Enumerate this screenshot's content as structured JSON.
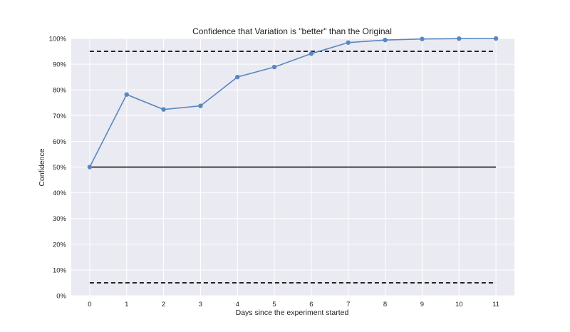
{
  "chart_data": {
    "type": "line",
    "title": "Confidence that Variation is \"better\" than the Original",
    "xlabel": "Days since the experiment started",
    "ylabel": "Confidence",
    "x": [
      0,
      1,
      2,
      3,
      4,
      5,
      6,
      7,
      8,
      9,
      10,
      11
    ],
    "x_ticks": [
      "0",
      "1",
      "2",
      "3",
      "4",
      "5",
      "6",
      "7",
      "8",
      "9",
      "10",
      "11"
    ],
    "xlim": [
      -0.5,
      11.5
    ],
    "ylim": [
      0,
      100
    ],
    "y_ticks": [
      0,
      10,
      20,
      30,
      40,
      50,
      60,
      70,
      80,
      90,
      100
    ],
    "y_tick_labels": [
      "0%",
      "10%",
      "20%",
      "30%",
      "40%",
      "50%",
      "60%",
      "70%",
      "80%",
      "90%",
      "100%"
    ],
    "series": [
      {
        "values": [
          50,
          78.2,
          72.4,
          73.8,
          85,
          88.9,
          94.1,
          98.4,
          99.4,
          99.8,
          99.95,
          100
        ],
        "color": "#5a87bf",
        "marker": "circle"
      }
    ],
    "reference_lines": [
      {
        "y": 95,
        "style": "dashed",
        "color": "#000000"
      },
      {
        "y": 50,
        "style": "solid",
        "color": "#000000"
      },
      {
        "y": 5,
        "style": "dashed",
        "color": "#000000"
      }
    ],
    "grid": true,
    "background": "#eaeaf2",
    "grid_color": "#ffffff"
  }
}
